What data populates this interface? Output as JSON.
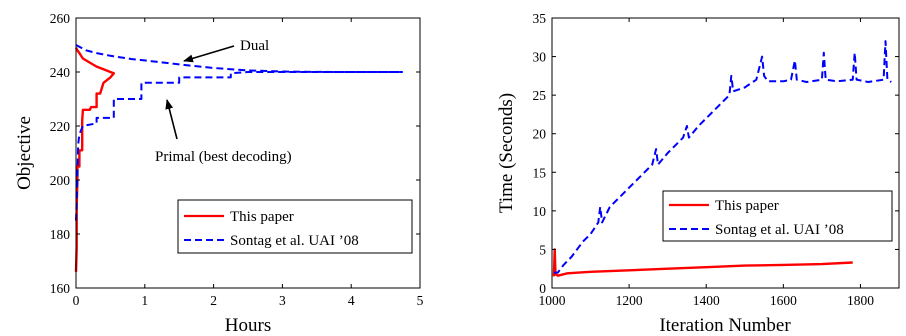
{
  "colors": {
    "this_paper": "#ff0000",
    "sontag": "#0000ff",
    "axes": "#000000"
  },
  "chart_data": [
    {
      "type": "line",
      "xlabel": "Hours",
      "ylabel": "Objective",
      "xlim": [
        0,
        5
      ],
      "ylim": [
        160,
        260
      ],
      "xticks": [
        "0",
        "1",
        "2",
        "3",
        "4",
        "5"
      ],
      "yticks": [
        "160",
        "180",
        "200",
        "220",
        "240",
        "260"
      ],
      "xtick_values": [
        0,
        1,
        2,
        3,
        4,
        5
      ],
      "ytick_values": [
        160,
        180,
        200,
        220,
        240,
        260
      ],
      "legend": {
        "position": "bottom-right",
        "entries": [
          "This paper",
          "Sontag et al. UAI ’08"
        ]
      },
      "annotations": [
        {
          "text": "Dual",
          "points_to": [
            1.15,
            244
          ]
        },
        {
          "text": "Primal (best decoding)",
          "points_to": [
            0.95,
            236
          ]
        }
      ],
      "series": [
        {
          "name": "This paper",
          "style": "solid",
          "color": "#ff0000",
          "points": [
            [
              0,
              166
            ],
            [
              0.01,
              175
            ],
            [
              0.01,
              190
            ],
            [
              0.02,
              200
            ],
            [
              0.02,
              205
            ],
            [
              0.05,
              205
            ],
            [
              0.05,
              211
            ],
            [
              0.09,
              211
            ],
            [
              0.09,
              222
            ],
            [
              0.1,
              226
            ],
            [
              0.2,
              226
            ],
            [
              0.22,
              227
            ],
            [
              0.3,
              227
            ],
            [
              0.3,
              232
            ],
            [
              0.35,
              232
            ],
            [
              0.4,
              236
            ],
            [
              0.5,
              238
            ],
            [
              0.55,
              239.5
            ],
            [
              0.5,
              240
            ],
            [
              0.4,
              241
            ],
            [
              0.3,
              242
            ],
            [
              0.2,
              243.5
            ],
            [
              0.1,
              245
            ],
            [
              0.05,
              247
            ],
            [
              0.02,
              248
            ],
            [
              0,
              249
            ]
          ]
        },
        {
          "name": "Sontag et al. UAI ’08 (Dual)",
          "style": "dashed",
          "color": "#0000ff",
          "points": [
            [
              0,
              250
            ],
            [
              0.15,
              248
            ],
            [
              0.3,
              247
            ],
            [
              0.5,
              246
            ],
            [
              0.8,
              244.8
            ],
            [
              1.1,
              244
            ],
            [
              1.5,
              242.8
            ],
            [
              2.0,
              241.5
            ],
            [
              2.5,
              240.6
            ],
            [
              3.0,
              240.2
            ],
            [
              3.5,
              240.05
            ],
            [
              4.0,
              240
            ],
            [
              4.75,
              240
            ]
          ]
        },
        {
          "name": "Sontag et al. UAI ’08 (Primal)",
          "style": "dashed",
          "color": "#0000ff",
          "points": [
            [
              0,
              185
            ],
            [
              0.02,
              200
            ],
            [
              0.03,
              213
            ],
            [
              0.05,
              217
            ],
            [
              0.1,
              220
            ],
            [
              0.3,
              221
            ],
            [
              0.3,
              223
            ],
            [
              0.55,
              223
            ],
            [
              0.55,
              230
            ],
            [
              0.95,
              230
            ],
            [
              0.95,
              236
            ],
            [
              1.5,
              236
            ],
            [
              1.5,
              238
            ],
            [
              2.25,
              238
            ],
            [
              2.25,
              239.5
            ],
            [
              2.5,
              240
            ],
            [
              4.75,
              240
            ]
          ]
        }
      ]
    },
    {
      "type": "line",
      "xlabel": "Iteration Number",
      "ylabel": "Time (Seconds)",
      "xlim": [
        1000,
        1900
      ],
      "ylim": [
        0,
        35
      ],
      "xticks": [
        "1000",
        "1200",
        "1400",
        "1600",
        "1800"
      ],
      "yticks": [
        "0",
        "5",
        "10",
        "15",
        "20",
        "25",
        "30",
        "35"
      ],
      "xtick_values": [
        1000,
        1200,
        1400,
        1600,
        1800
      ],
      "ytick_values": [
        0,
        5,
        10,
        15,
        20,
        25,
        30,
        35
      ],
      "legend": {
        "position": "bottom-right",
        "entries": [
          "This paper",
          "Sontag et al. UAI ’08"
        ]
      },
      "series": [
        {
          "name": "This paper",
          "style": "solid",
          "color": "#ff0000",
          "points": [
            [
              1005,
              1.5
            ],
            [
              1007,
              5
            ],
            [
              1009,
              1.8
            ],
            [
              1015,
              1.6
            ],
            [
              1040,
              1.9
            ],
            [
              1100,
              2.1
            ],
            [
              1200,
              2.3
            ],
            [
              1300,
              2.5
            ],
            [
              1400,
              2.7
            ],
            [
              1500,
              2.9
            ],
            [
              1600,
              3.0
            ],
            [
              1700,
              3.1
            ],
            [
              1780,
              3.3
            ]
          ]
        },
        {
          "name": "Sontag et al. UAI ’08",
          "style": "dashed",
          "color": "#0000ff",
          "points": [
            [
              1005,
              2
            ],
            [
              1015,
              2
            ],
            [
              1030,
              3
            ],
            [
              1050,
              4
            ],
            [
              1080,
              6
            ],
            [
              1100,
              7
            ],
            [
              1120,
              8.5
            ],
            [
              1125,
              10.5
            ],
            [
              1130,
              8.5
            ],
            [
              1150,
              10.5
            ],
            [
              1180,
              12
            ],
            [
              1200,
              13
            ],
            [
              1240,
              15
            ],
            [
              1260,
              16
            ],
            [
              1270,
              18
            ],
            [
              1275,
              16
            ],
            [
              1300,
              17.5
            ],
            [
              1340,
              19.5
            ],
            [
              1350,
              21
            ],
            [
              1355,
              19.5
            ],
            [
              1380,
              21
            ],
            [
              1400,
              22
            ],
            [
              1440,
              24
            ],
            [
              1460,
              25
            ],
            [
              1465,
              27.5
            ],
            [
              1470,
              25.5
            ],
            [
              1500,
              26
            ],
            [
              1530,
              27
            ],
            [
              1545,
              30
            ],
            [
              1550,
              27.5
            ],
            [
              1560,
              26.8
            ],
            [
              1600,
              26.8
            ],
            [
              1620,
              27
            ],
            [
              1630,
              29.5
            ],
            [
              1635,
              27
            ],
            [
              1660,
              26.7
            ],
            [
              1700,
              27
            ],
            [
              1705,
              30.5
            ],
            [
              1710,
              27
            ],
            [
              1740,
              26.8
            ],
            [
              1780,
              27
            ],
            [
              1785,
              30.5
            ],
            [
              1790,
              27
            ],
            [
              1820,
              26.7
            ],
            [
              1860,
              27
            ],
            [
              1865,
              32
            ],
            [
              1870,
              27
            ],
            [
              1880,
              26.7
            ]
          ]
        }
      ]
    }
  ]
}
